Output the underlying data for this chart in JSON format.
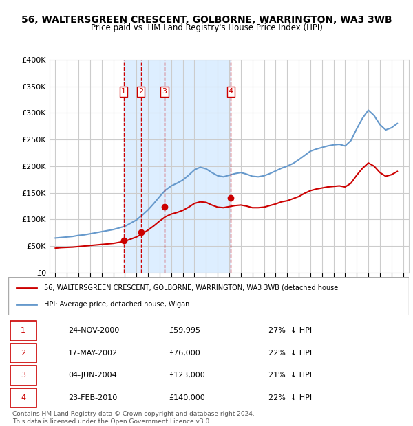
{
  "title": "56, WALTERSGREEN CRESCENT, GOLBORNE, WARRINGTON, WA3 3WB",
  "subtitle": "Price paid vs. HM Land Registry's House Price Index (HPI)",
  "footer_line1": "Contains HM Land Registry data © Crown copyright and database right 2024.",
  "footer_line2": "This data is licensed under the Open Government Licence v3.0.",
  "legend_line1": "56, WALTERSGREEN CRESCENT, GOLBORNE, WARRINGTON, WA3 3WB (detached house",
  "legend_line2": "HPI: Average price, detached house, Wigan",
  "sale_color": "#cc0000",
  "hpi_color": "#6699cc",
  "transaction_color": "#cc0000",
  "background_color": "#ffffff",
  "plot_bg_color": "#ffffff",
  "grid_color": "#cccccc",
  "highlight_bg": "#ddeeff",
  "ylim": [
    0,
    400000
  ],
  "yticks": [
    0,
    50000,
    100000,
    150000,
    200000,
    250000,
    300000,
    350000,
    400000
  ],
  "ytick_labels": [
    "£0",
    "£50K",
    "£100K",
    "£150K",
    "£200K",
    "£250K",
    "£300K",
    "£350K",
    "£400K"
  ],
  "transactions": [
    {
      "num": 1,
      "date": "24-NOV-2000",
      "x": 2000.9,
      "price": 59995,
      "pct": "27%",
      "dir": "↓"
    },
    {
      "num": 2,
      "date": "17-MAY-2002",
      "x": 2002.38,
      "price": 76000,
      "pct": "22%",
      "dir": "↓"
    },
    {
      "num": 3,
      "date": "04-JUN-2004",
      "x": 2004.42,
      "price": 123000,
      "pct": "21%",
      "dir": "↓"
    },
    {
      "num": 4,
      "date": "23-FEB-2010",
      "x": 2010.14,
      "price": 140000,
      "pct": "22%",
      "dir": "↓"
    }
  ],
  "hpi_x": [
    1995,
    1995.5,
    1996,
    1996.5,
    1997,
    1997.5,
    1998,
    1998.5,
    1999,
    1999.5,
    2000,
    2000.5,
    2001,
    2001.5,
    2002,
    2002.5,
    2003,
    2003.5,
    2004,
    2004.5,
    2005,
    2005.5,
    2006,
    2006.5,
    2007,
    2007.5,
    2008,
    2008.5,
    2009,
    2009.5,
    2010,
    2010.5,
    2011,
    2011.5,
    2012,
    2012.5,
    2013,
    2013.5,
    2014,
    2014.5,
    2015,
    2015.5,
    2016,
    2016.5,
    2017,
    2017.5,
    2018,
    2018.5,
    2019,
    2019.5,
    2020,
    2020.5,
    2021,
    2021.5,
    2022,
    2022.5,
    2023,
    2023.5,
    2024,
    2024.5
  ],
  "hpi_y": [
    65000,
    66000,
    67000,
    68000,
    70000,
    71000,
    73000,
    75000,
    77000,
    79000,
    81000,
    84000,
    87000,
    93000,
    99000,
    108000,
    118000,
    130000,
    143000,
    155000,
    163000,
    168000,
    174000,
    183000,
    193000,
    198000,
    195000,
    188000,
    182000,
    180000,
    183000,
    186000,
    188000,
    185000,
    181000,
    180000,
    182000,
    186000,
    191000,
    196000,
    200000,
    205000,
    212000,
    220000,
    228000,
    232000,
    235000,
    238000,
    240000,
    241000,
    238000,
    248000,
    270000,
    290000,
    305000,
    295000,
    278000,
    268000,
    272000,
    280000
  ],
  "sale_x": [
    1995,
    1995.5,
    1996,
    1996.5,
    1997,
    1997.5,
    1998,
    1998.5,
    1999,
    1999.5,
    2000,
    2000.5,
    2001,
    2001.5,
    2002,
    2002.5,
    2003,
    2003.5,
    2004,
    2004.5,
    2005,
    2005.5,
    2006,
    2006.5,
    2007,
    2007.5,
    2008,
    2008.5,
    2009,
    2009.5,
    2010,
    2010.5,
    2011,
    2011.5,
    2012,
    2012.5,
    2013,
    2013.5,
    2014,
    2014.5,
    2015,
    2015.5,
    2016,
    2016.5,
    2017,
    2017.5,
    2018,
    2018.5,
    2019,
    2019.5,
    2020,
    2020.5,
    2021,
    2021.5,
    2022,
    2022.5,
    2023,
    2023.5,
    2024,
    2024.5
  ],
  "sale_y": [
    46000,
    47000,
    47500,
    48000,
    49000,
    50000,
    51000,
    52000,
    53000,
    54000,
    55000,
    57000,
    59000,
    63000,
    67000,
    73000,
    80000,
    88000,
    97000,
    105000,
    110000,
    113000,
    117000,
    123000,
    130000,
    133000,
    132000,
    127000,
    123000,
    122000,
    124000,
    126000,
    127000,
    125000,
    122000,
    122000,
    123000,
    126000,
    129000,
    133000,
    135000,
    139000,
    143000,
    149000,
    154000,
    157000,
    159000,
    161000,
    162000,
    163000,
    161000,
    168000,
    183000,
    196000,
    206000,
    200000,
    188000,
    181000,
    184000,
    190000
  ],
  "xlim": [
    1994.5,
    2025.5
  ],
  "xtick_years": [
    1995,
    1996,
    1997,
    1998,
    1999,
    2000,
    2001,
    2002,
    2003,
    2004,
    2005,
    2006,
    2007,
    2008,
    2009,
    2010,
    2011,
    2012,
    2013,
    2014,
    2015,
    2016,
    2017,
    2018,
    2019,
    2020,
    2021,
    2022,
    2023,
    2024,
    2025
  ]
}
